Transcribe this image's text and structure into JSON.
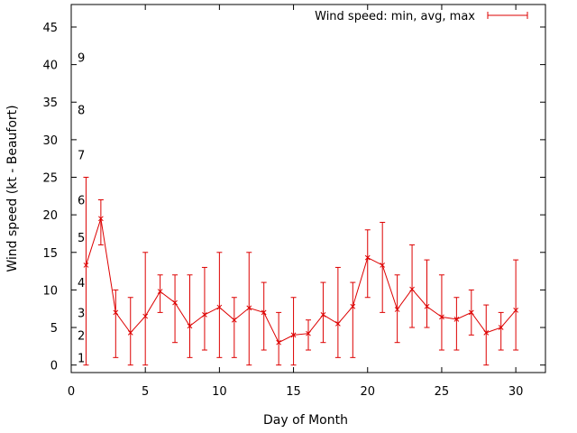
{
  "chart_data": {
    "type": "line",
    "xlabel": "Day of Month",
    "ylabel": "Wind speed (kt - Beaufort)",
    "xlim": [
      0,
      32
    ],
    "ylim": [
      -1,
      48
    ],
    "x_ticks": [
      0,
      5,
      10,
      15,
      20,
      25,
      30
    ],
    "y_ticks": [
      0,
      5,
      10,
      15,
      20,
      25,
      30,
      35,
      40,
      45
    ],
    "beaufort_labels": [
      {
        "label": "1",
        "y": 1
      },
      {
        "label": "2",
        "y": 4
      },
      {
        "label": "3",
        "y": 7
      },
      {
        "label": "4",
        "y": 11
      },
      {
        "label": "5",
        "y": 17
      },
      {
        "label": "6",
        "y": 22
      },
      {
        "label": "7",
        "y": 28
      },
      {
        "label": "8",
        "y": 34
      },
      {
        "label": "9",
        "y": 41
      }
    ],
    "legend": {
      "label": "Wind speed: min, avg, max",
      "placement": "top-right"
    },
    "color": "#dd0000",
    "series": [
      {
        "name": "Wind speed: min, avg, max",
        "points": [
          {
            "x": 1,
            "min": 0,
            "avg": 13.3,
            "max": 25
          },
          {
            "x": 2,
            "min": 16,
            "avg": 19.5,
            "max": 22
          },
          {
            "x": 3,
            "min": 1,
            "avg": 7,
            "max": 10
          },
          {
            "x": 4,
            "min": 0,
            "avg": 4.3,
            "max": 9
          },
          {
            "x": 5,
            "min": 0,
            "avg": 6.5,
            "max": 15
          },
          {
            "x": 6,
            "min": 7,
            "avg": 9.8,
            "max": 12
          },
          {
            "x": 7,
            "min": 3,
            "avg": 8.3,
            "max": 12
          },
          {
            "x": 8,
            "min": 1,
            "avg": 5.2,
            "max": 12
          },
          {
            "x": 9,
            "min": 2,
            "avg": 6.7,
            "max": 13
          },
          {
            "x": 10,
            "min": 1,
            "avg": 7.7,
            "max": 15
          },
          {
            "x": 11,
            "min": 1,
            "avg": 6,
            "max": 9
          },
          {
            "x": 12,
            "min": 0,
            "avg": 7.6,
            "max": 15
          },
          {
            "x": 13,
            "min": 2,
            "avg": 7,
            "max": 11
          },
          {
            "x": 14,
            "min": 0,
            "avg": 3,
            "max": 7
          },
          {
            "x": 15,
            "min": 0,
            "avg": 4,
            "max": 9
          },
          {
            "x": 16,
            "min": 2,
            "avg": 4.2,
            "max": 6
          },
          {
            "x": 17,
            "min": 3,
            "avg": 6.7,
            "max": 11
          },
          {
            "x": 18,
            "min": 1,
            "avg": 5.5,
            "max": 13
          },
          {
            "x": 19,
            "min": 1,
            "avg": 7.8,
            "max": 11
          },
          {
            "x": 20,
            "min": 9,
            "avg": 14.3,
            "max": 18
          },
          {
            "x": 21,
            "min": 7,
            "avg": 13.3,
            "max": 19
          },
          {
            "x": 22,
            "min": 3,
            "avg": 7.4,
            "max": 12
          },
          {
            "x": 23,
            "min": 5,
            "avg": 10.1,
            "max": 16
          },
          {
            "x": 24,
            "min": 5,
            "avg": 7.8,
            "max": 14
          },
          {
            "x": 25,
            "min": 2,
            "avg": 6.4,
            "max": 12
          },
          {
            "x": 26,
            "min": 2,
            "avg": 6.1,
            "max": 9
          },
          {
            "x": 27,
            "min": 4,
            "avg": 7,
            "max": 10
          },
          {
            "x": 28,
            "min": 0,
            "avg": 4.3,
            "max": 8
          },
          {
            "x": 29,
            "min": 2,
            "avg": 5,
            "max": 7
          },
          {
            "x": 30,
            "min": 2,
            "avg": 7.3,
            "max": 14
          }
        ]
      }
    ]
  }
}
